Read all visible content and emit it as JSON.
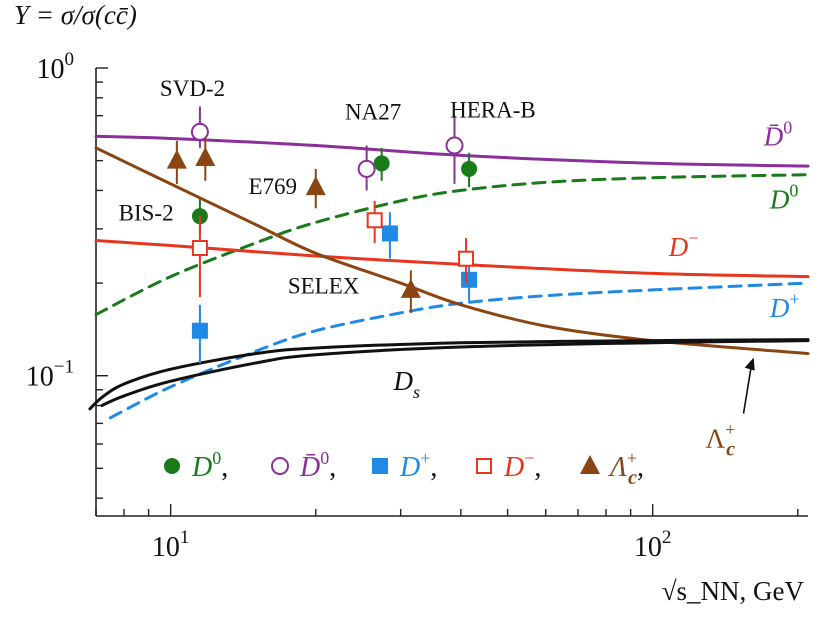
{
  "chart_data": {
    "type": "line",
    "title": "",
    "ylabel": "Y = σ/σ(cc̄)",
    "xlabel": "√s_NN, GeV",
    "xscale": "log",
    "yscale": "log",
    "xlim": [
      7,
      210
    ],
    "ylim": [
      0.035,
      1.0
    ],
    "x_ticks": [
      {
        "value": 10,
        "base": "10",
        "exp": "1"
      },
      {
        "value": 100,
        "base": "10",
        "exp": "2"
      }
    ],
    "y_ticks": [
      {
        "value": 1.0,
        "base": "10",
        "exp": "0"
      },
      {
        "value": 0.1,
        "base": "10",
        "exp": "−1"
      }
    ],
    "colors": {
      "D0": "#1a7a1a",
      "D0bar": "#8b2f9b",
      "Dplus": "#1f8ae6",
      "Dminus": "#e8351e",
      "Lambda": "#8b4513",
      "Ds": "#111111",
      "axis": "#222222"
    },
    "curves": [
      {
        "name": "D̄0",
        "label": "D̄",
        "sup": "0",
        "color_key": "D0bar",
        "dashed": false,
        "x": [
          7,
          10,
          20,
          40,
          100,
          210
        ],
        "y": [
          0.6,
          0.59,
          0.56,
          0.52,
          0.49,
          0.48
        ]
      },
      {
        "name": "D0",
        "label": "D",
        "sup": "0",
        "color_key": "D0",
        "dashed": true,
        "x": [
          7,
          10,
          15,
          20,
          30,
          40,
          60,
          100,
          210
        ],
        "y": [
          0.158,
          0.21,
          0.27,
          0.315,
          0.37,
          0.4,
          0.425,
          0.44,
          0.45
        ]
      },
      {
        "name": "D-",
        "label": "D",
        "sup": "−",
        "color_key": "Dminus",
        "dashed": false,
        "x": [
          7,
          10,
          20,
          40,
          100,
          210
        ],
        "y": [
          0.275,
          0.265,
          0.245,
          0.23,
          0.215,
          0.21
        ]
      },
      {
        "name": "D+",
        "label": "D",
        "sup": "+",
        "color_key": "Dplus",
        "dashed": true,
        "x": [
          7.5,
          10,
          15,
          20,
          30,
          40,
          60,
          100,
          210
        ],
        "y": [
          0.073,
          0.092,
          0.12,
          0.14,
          0.16,
          0.172,
          0.182,
          0.19,
          0.2
        ]
      },
      {
        "name": "Λc+",
        "label": "Λ",
        "sup": "+",
        "color_key": "Lambda",
        "dashed": false,
        "x": [
          7,
          10,
          15,
          20,
          30,
          40,
          60,
          100,
          210
        ],
        "y": [
          0.55,
          0.42,
          0.31,
          0.25,
          0.2,
          0.17,
          0.145,
          0.13,
          0.118
        ]
      },
      {
        "name": "Ds (upper)",
        "label": "",
        "sup": "",
        "color_key": "Ds",
        "dashed": false,
        "x": [
          6.8,
          7.2,
          8,
          10,
          15,
          20,
          40,
          100,
          210
        ],
        "y": [
          0.078,
          0.085,
          0.094,
          0.105,
          0.118,
          0.123,
          0.128,
          0.13,
          0.131
        ]
      },
      {
        "name": "Ds (lower)",
        "label": "",
        "sup": "",
        "color_key": "Ds",
        "dashed": false,
        "x": [
          7.2,
          8,
          10,
          15,
          20,
          40,
          100,
          210
        ],
        "y": [
          0.08,
          0.086,
          0.096,
          0.11,
          0.117,
          0.124,
          0.128,
          0.13
        ]
      }
    ],
    "curve_labels": [
      {
        "text": "D̄",
        "sup": "0",
        "color_key": "D0bar",
        "x": 170,
        "y": 0.56
      },
      {
        "text": "D",
        "sup": "0",
        "color_key": "D0",
        "x": 175,
        "y": 0.35
      },
      {
        "text": "D",
        "sup": "−",
        "color_key": "Dminus",
        "x": 108,
        "y": 0.245
      },
      {
        "text": "D",
        "sup": "+",
        "color_key": "Dplus",
        "x": 175,
        "y": 0.155
      },
      {
        "text": "D",
        "sub": "s",
        "color_key": "Ds",
        "x": 29,
        "y": 0.09
      }
    ],
    "lambda_annotation": {
      "text": "Λ",
      "sup": "+",
      "sub": "c",
      "color_key": "Lambda",
      "label_x": 135,
      "label_y": 0.062,
      "arrow_to_x": 162,
      "arrow_to_y": 0.118
    },
    "experiments": [
      {
        "text": "SVD-2",
        "x": 9.5,
        "y": 0.81
      },
      {
        "text": "NA27",
        "x": 23,
        "y": 0.68
      },
      {
        "text": "HERA-B",
        "x": 38,
        "y": 0.69
      },
      {
        "text": "E769",
        "x": 14.5,
        "y": 0.39
      },
      {
        "text": "BIS-2",
        "x": 7.8,
        "y": 0.32
      },
      {
        "text": "SELEX",
        "x": 17.5,
        "y": 0.185
      }
    ],
    "points": [
      {
        "species": "D0",
        "marker": "filled-circle",
        "x": 11.5,
        "y": 0.33,
        "err": [
          0.29,
          0.375
        ]
      },
      {
        "species": "D0",
        "marker": "filled-circle",
        "x": 27.4,
        "y": 0.49,
        "err": [
          0.43,
          0.55
        ]
      },
      {
        "species": "D0",
        "marker": "filled-circle",
        "x": 41.6,
        "y": 0.47,
        "err": [
          0.41,
          0.53
        ]
      },
      {
        "species": "D0bar",
        "marker": "open-circle",
        "x": 11.5,
        "y": 0.62,
        "err": [
          0.55,
          0.75
        ]
      },
      {
        "species": "D0bar",
        "marker": "open-circle",
        "x": 25.5,
        "y": 0.47,
        "err": [
          0.4,
          0.56
        ]
      },
      {
        "species": "D0bar",
        "marker": "open-circle",
        "x": 38.8,
        "y": 0.56,
        "err": [
          0.42,
          0.7
        ]
      },
      {
        "species": "Dplus",
        "marker": "filled-square",
        "x": 11.5,
        "y": 0.14,
        "err": [
          0.11,
          0.17
        ]
      },
      {
        "species": "Dplus",
        "marker": "filled-square",
        "x": 28.5,
        "y": 0.29,
        "err": [
          0.24,
          0.34
        ]
      },
      {
        "species": "Dplus",
        "marker": "filled-square",
        "x": 41.6,
        "y": 0.205,
        "err": [
          0.175,
          0.235
        ]
      },
      {
        "species": "Dminus",
        "marker": "open-square",
        "x": 11.5,
        "y": 0.26,
        "err": [
          0.18,
          0.33
        ]
      },
      {
        "species": "Dminus",
        "marker": "open-square",
        "x": 26.5,
        "y": 0.32,
        "err": [
          0.27,
          0.37
        ]
      },
      {
        "species": "Dminus",
        "marker": "open-square",
        "x": 41.0,
        "y": 0.24,
        "err": [
          0.2,
          0.28
        ]
      },
      {
        "species": "Lambda",
        "marker": "filled-triangle",
        "x": 10.3,
        "y": 0.5,
        "err": [
          0.42,
          0.58
        ]
      },
      {
        "species": "Lambda",
        "marker": "filled-triangle",
        "x": 11.8,
        "y": 0.51,
        "err": [
          0.43,
          0.59
        ]
      },
      {
        "species": "Lambda",
        "marker": "filled-triangle",
        "x": 20.0,
        "y": 0.41,
        "err": [
          0.35,
          0.47
        ]
      },
      {
        "species": "Lambda",
        "marker": "filled-triangle",
        "x": 31.5,
        "y": 0.19,
        "err": [
          0.16,
          0.22
        ]
      }
    ],
    "legend": {
      "placement": "bottom-left",
      "entries": [
        {
          "marker": "filled-circle",
          "color_key": "D0",
          "base": "D",
          "sup": "0"
        },
        {
          "marker": "open-circle",
          "color_key": "D0bar",
          "base": "D̄",
          "sup": "0"
        },
        {
          "marker": "filled-square",
          "color_key": "Dplus",
          "base": "D",
          "sup": "+"
        },
        {
          "marker": "open-square",
          "color_key": "Dminus",
          "base": "D",
          "sup": "−"
        },
        {
          "marker": "filled-triangle",
          "color_key": "Lambda",
          "base": "Λ",
          "sup": "+",
          "sub": "c"
        }
      ]
    }
  }
}
